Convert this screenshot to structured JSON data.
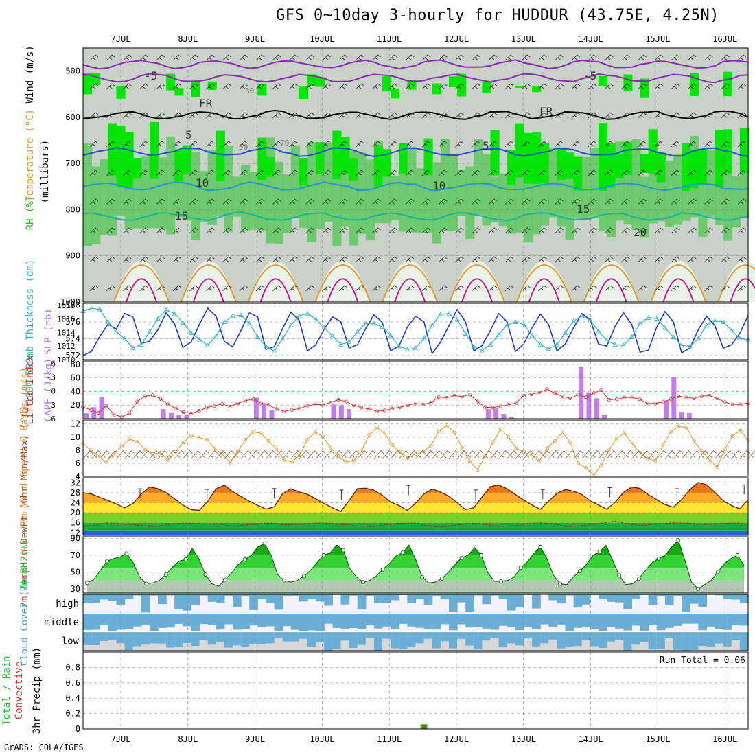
{
  "title": "GFS 0~10day 3-hourly for HUDDUR (43.75E, 4.25N)",
  "credit": "GrADS: COLA/IGES",
  "colors": {
    "rh_green": "#00e600",
    "rh_mid": "#5fc85f",
    "rh_gray": "#c8d2c8",
    "slp": "#1e3cc8",
    "thickness": "#30b4c8",
    "cape": "#c27cf0",
    "lifted": "#e03030",
    "wind10": "#e8962a",
    "barb": "#8c6446",
    "temp_fill": "#f08c28",
    "rh_surface": "#1ec81e",
    "cloud": "#6aaed6",
    "precip_rain": "#1ec81e",
    "precip_conv": "#e03030"
  },
  "chart_data": [
    {
      "type": "heatmap",
      "panel": "upper-air",
      "labels": {
        "left": [
          "Wind (m/s)",
          "Temperature (°C)",
          "RH (%)"
        ],
        "units": "(millibars)"
      },
      "dates": [
        "7JUL",
        "8JUL",
        "9JUL",
        "10JUL",
        "11JUL",
        "12JUL",
        "13JUL",
        "14JUL",
        "15JUL",
        "16JUL"
      ],
      "ylabel": "(millibars)",
      "yticks": [
        500,
        600,
        700,
        800,
        900,
        1000
      ],
      "ylim": [
        1000,
        450
      ],
      "contour_labels": [
        "-5",
        "FR",
        "5",
        "10",
        "15",
        "20",
        "-5",
        "FR",
        "5",
        "10",
        "15",
        "20",
        "30",
        "50",
        "70"
      ]
    },
    {
      "type": "line",
      "panel": "pressure",
      "ylabel_left": "1000-500mb Thickness (dm)",
      "ylabel_right": "SLP (mb)",
      "left_ticks": [
        572,
        574,
        576,
        578
      ],
      "right_ticks": [
        1010,
        1012,
        1014,
        1016,
        1018
      ],
      "series": [
        {
          "name": "SLP (mb)",
          "values": [
            1010.6,
            1011.2,
            1013.4,
            1015.2,
            1014.5,
            1016.8,
            1016.3,
            1012.4,
            1012.7,
            1014.4,
            1016.9,
            1015.3,
            1011.8,
            1012.6,
            1015.2,
            1017.6,
            1016.4,
            1012.7,
            1011.9,
            1014.3,
            1016.9,
            1016.3,
            1011.5,
            1011.9,
            1014.6,
            1017.0,
            1015.8,
            1011.3,
            1012.2,
            1014.5,
            1016.3,
            1015.6,
            1011.7,
            1012.2,
            1014.6,
            1016.6,
            1015.5,
            1011.3,
            1012.0,
            1014.8,
            1016.4,
            1015.6,
            1010.9,
            1012.6,
            1015.0,
            1017.4,
            1015.6,
            1011.3,
            1012.1,
            1014.3,
            1016.8,
            1015.6,
            1011.2,
            1012.3,
            1014.7,
            1016.7,
            1015.2,
            1011.3,
            1012.3,
            1014.7,
            1016.8,
            1015.9,
            1012.3,
            1012.0,
            1014.9,
            1016.9,
            1015.2,
            1011.1,
            1011.4,
            1014.8,
            1017.1,
            1015.6,
            1011.0,
            1011.7,
            1014.4,
            1016.4,
            1015.0,
            1011.7,
            1012.2,
            1013.9,
            1016.5
          ]
        },
        {
          "name": "1000-500mb Thickness (dm)",
          "values": [
            577.3,
            577.6,
            577.5,
            576.0,
            574.8,
            574.0,
            572.9,
            573.3,
            574.8,
            576.4,
            577.4,
            577.0,
            575.9,
            574.7,
            573.9,
            573.2,
            574.3,
            576.0,
            576.7,
            576.8,
            575.8,
            574.2,
            573.1,
            572.5,
            574.0,
            575.6,
            576.7,
            577.0,
            576.3,
            575.3,
            574.3,
            573.3,
            573.6,
            574.8,
            575.8,
            575.8,
            575.4,
            574.4,
            573.1,
            572.7,
            572.9,
            574.0,
            575.6,
            576.9,
            577.0,
            576.3,
            574.6,
            573.1,
            572.6,
            573.3,
            574.5,
            575.6,
            576.0,
            575.7,
            574.4,
            573.3,
            572.8,
            573.3,
            574.7,
            576.1,
            576.7,
            576.2,
            574.9,
            573.8,
            573.3,
            573.2,
            574.2,
            575.8,
            576.5,
            576.4,
            575.3,
            574.2,
            573.2,
            573.1,
            574.0,
            575.6,
            576.1,
            576.0,
            575.0,
            574.0,
            573.9
          ]
        }
      ]
    },
    {
      "type": "bar",
      "panel": "stability",
      "ylabel_left": "Lifted Index",
      "ylabel_right": "CAPE (J/kg)",
      "left_ticks": [
        -6,
        -3,
        0,
        3,
        6
      ],
      "right_ticks": [
        20,
        40,
        60,
        80
      ],
      "series": [
        {
          "name": "CAPE (J/kg)",
          "values": [
            8,
            17,
            32,
            0,
            0,
            0,
            0,
            0,
            0,
            0,
            14,
            9,
            6,
            6,
            0,
            0,
            0,
            0,
            0,
            0,
            0,
            0,
            31,
            23,
            13,
            0,
            0,
            0,
            0,
            0,
            0,
            0,
            21,
            20,
            14,
            0,
            0,
            0,
            0,
            0,
            0,
            0,
            0,
            0,
            0,
            0,
            0,
            0,
            0,
            0,
            0,
            0,
            14,
            15,
            7,
            3,
            0,
            0,
            0,
            0,
            0,
            0,
            0,
            0,
            77,
            39,
            30,
            6,
            0,
            0,
            0,
            0,
            0,
            0,
            0,
            27,
            61,
            10,
            8,
            0,
            0,
            0,
            0,
            0,
            0,
            0
          ]
        },
        {
          "name": "Lifted Index",
          "values": [
            3.5,
            4.1,
            4.7,
            3.2,
            5.1,
            5.6,
            4.8,
            2.3,
            1.1,
            0.9,
            1.7,
            2.9,
            3.8,
            4.6,
            4.9,
            4.3,
            3.6,
            3.2,
            2.8,
            3.4,
            2.7,
            2.1,
            1.8,
            2.6,
            3.0,
            3.9,
            4.4,
            4.1,
            3.8,
            3.2,
            2.9,
            3.0,
            2.5,
            1.9,
            2.3,
            3.1,
            3.6,
            3.9,
            4.4,
            4.2,
            3.8,
            3.5,
            3.1,
            2.7,
            2.9,
            2.5,
            1.3,
            1.5,
            1.0,
            1.2,
            0.8,
            2.3,
            3.5,
            3.6,
            3.3,
            3.0,
            2.6,
            1.0,
            0.7,
            0.3,
            -0.4,
            0.5,
            1.2,
            1.6,
            0.8,
            1.3,
            0.5,
            -0.2,
            1.9,
            1.8,
            1.4,
            1.4,
            1.8,
            2.7,
            2.7,
            2.4,
            1.8,
            1.1,
            1.4,
            1.6,
            1.1,
            1.0,
            1.6,
            2.4,
            2.9,
            2.9,
            2.6
          ]
        }
      ]
    },
    {
      "type": "line",
      "panel": "wind10m",
      "ylabel": "10m Wind Speed & Barbs (m/s)",
      "yticks": [
        4,
        6,
        8,
        10,
        12
      ],
      "ylim": [
        4,
        12
      ],
      "series": [
        {
          "name": "10m Wind Speed",
          "values": [
            9.0,
            8.0,
            7.0,
            6.2,
            7.5,
            8.6,
            9.7,
            9.3,
            8.1,
            7.4,
            7.6,
            6.5,
            7.8,
            9.2,
            10.2,
            9.9,
            9.6,
            8.3,
            7.4,
            6.1,
            7.8,
            9.6,
            10.8,
            10.6,
            9.4,
            8.2,
            6.5,
            6.2,
            7.2,
            9.6,
            10.7,
            10.1,
            8.4,
            7.1,
            6.2,
            6.4,
            7.9,
            10.3,
            11.5,
            10.6,
            8.8,
            7.7,
            6.8,
            7.4,
            7.8,
            8.7,
            10.9,
            11.8,
            10.7,
            8.4,
            6.3,
            5.0,
            7.1,
            9.2,
            11.2,
            10.0,
            8.3,
            7.7,
            7.3,
            6.3,
            8.3,
            9.4,
            10.7,
            9.2,
            6.0,
            5.3,
            4.2,
            5.6,
            8.1,
            9.8,
            10.6,
            9.0,
            7.6,
            6.7,
            6.4,
            8.8,
            10.8,
            11.6,
            11.5,
            9.4,
            7.9,
            6.5,
            5.4,
            8.2,
            10.2,
            11.0,
            9.5
          ]
        }
      ]
    },
    {
      "type": "area",
      "panel": "temperature",
      "ylabel": "2m Temp 2m DewPt (6hr Min/Max) (°C)",
      "yticks": [
        12,
        16,
        20,
        24,
        28,
        32
      ],
      "ylim": [
        11,
        34
      ],
      "series": [
        {
          "name": "2m Temp",
          "values": [
            28.0,
            27.5,
            26.2,
            24.9,
            23.5,
            22.0,
            23.7,
            27.5,
            30.3,
            29.6,
            28.0,
            25.6,
            23.1,
            21.3,
            21.0,
            24.6,
            29.6,
            31.0,
            28.5,
            26.5,
            24.6,
            23.0,
            21.5,
            22.4,
            27.6,
            29.6,
            28.3,
            27.4,
            25.6,
            23.7,
            22.0,
            20.5,
            24.8,
            29.6,
            29.8,
            29.0,
            27.0,
            24.3,
            22.9,
            21.0,
            23.8,
            27.5,
            29.5,
            28.3,
            26.6,
            24.0,
            21.3,
            22.0,
            26.3,
            30.4,
            31.1,
            29.6,
            27.3,
            25.1,
            23.1,
            21.4,
            24.7,
            27.7,
            29.3,
            28.6,
            27.3,
            24.8,
            23.1,
            21.4,
            24.2,
            28.1,
            30.3,
            29.7,
            27.2,
            25.3,
            23.3,
            22.2,
            25.3,
            29.3,
            32.1,
            31.2,
            28.1,
            24.8,
            22.9,
            21.6,
            25.2
          ]
        },
        {
          "name": "2m DewPt",
          "values": [
            14.3,
            14.9,
            15.4,
            16.0,
            15.8,
            15.4,
            15.3,
            15.0,
            14.5,
            14.6,
            15.1,
            15.6,
            15.9,
            15.8,
            15.6,
            15.4,
            15.6,
            15.2,
            14.6,
            15.0,
            15.3,
            15.3,
            15.9,
            15.8,
            15.2,
            15.2,
            15.4,
            15.6,
            15.9,
            15.9,
            15.7,
            15.1,
            15.4,
            14.7,
            14.6,
            14.5,
            15.1,
            15.4,
            15.8,
            15.9,
            15.9,
            15.1,
            14.6,
            14.3,
            14.6,
            15.2,
            15.6,
            15.8,
            15.4,
            15.1,
            14.6,
            14.7,
            14.8,
            15.5,
            15.8,
            16.0,
            15.8,
            15.3,
            14.5,
            14.6,
            14.8,
            15.2,
            15.6,
            16.2,
            16.6,
            15.9,
            15.3,
            15.0,
            15.2,
            15.6,
            15.7,
            16.0,
            15.9,
            15.8,
            15.4,
            15.3,
            15.5,
            15.7,
            15.9,
            15.9,
            15.2
          ]
        }
      ]
    },
    {
      "type": "area",
      "panel": "relative-humidity",
      "ylabel": "2m RH (%)",
      "yticks": [
        30,
        50,
        70,
        90
      ],
      "ylim": [
        25,
        92
      ],
      "series": [
        {
          "name": "2m RH",
          "values": [
            37,
            41,
            52,
            63,
            66,
            68,
            72,
            61,
            44,
            36,
            37,
            40,
            47,
            56,
            63,
            65,
            78,
            66,
            47,
            36,
            33,
            41,
            49,
            59,
            65,
            70,
            80,
            84,
            70,
            47,
            40,
            38,
            40,
            45,
            52,
            61,
            70,
            73,
            82,
            76,
            54,
            44,
            38,
            40,
            45,
            53,
            60,
            69,
            73,
            82,
            65,
            44,
            37,
            38,
            42,
            50,
            59,
            67,
            70,
            79,
            70,
            49,
            39,
            39,
            40,
            44,
            55,
            62,
            72,
            80,
            66,
            46,
            36,
            35,
            44,
            51,
            59,
            70,
            74,
            82,
            64,
            46,
            35,
            36,
            42,
            52,
            61,
            66,
            70,
            80,
            88,
            64,
            38,
            30,
            35,
            40,
            50,
            60,
            66,
            70,
            58
          ]
        }
      ]
    },
    {
      "type": "area",
      "panel": "cloud-cover",
      "ylabel": "Cloud Cover (%)",
      "levels": [
        "high",
        "middle",
        "low"
      ]
    },
    {
      "type": "bar",
      "panel": "precipitation",
      "ylabel": "3hr Precip (mm)",
      "legend": [
        "Total / Rain",
        "Convective"
      ],
      "yticks": [
        0,
        0.2,
        0.4,
        0.6,
        0.8
      ],
      "ylim": [
        0,
        1.0
      ],
      "annotation": "Run Total = 0.06",
      "bar_date_index": 41,
      "bar_value": 0.06
    }
  ]
}
